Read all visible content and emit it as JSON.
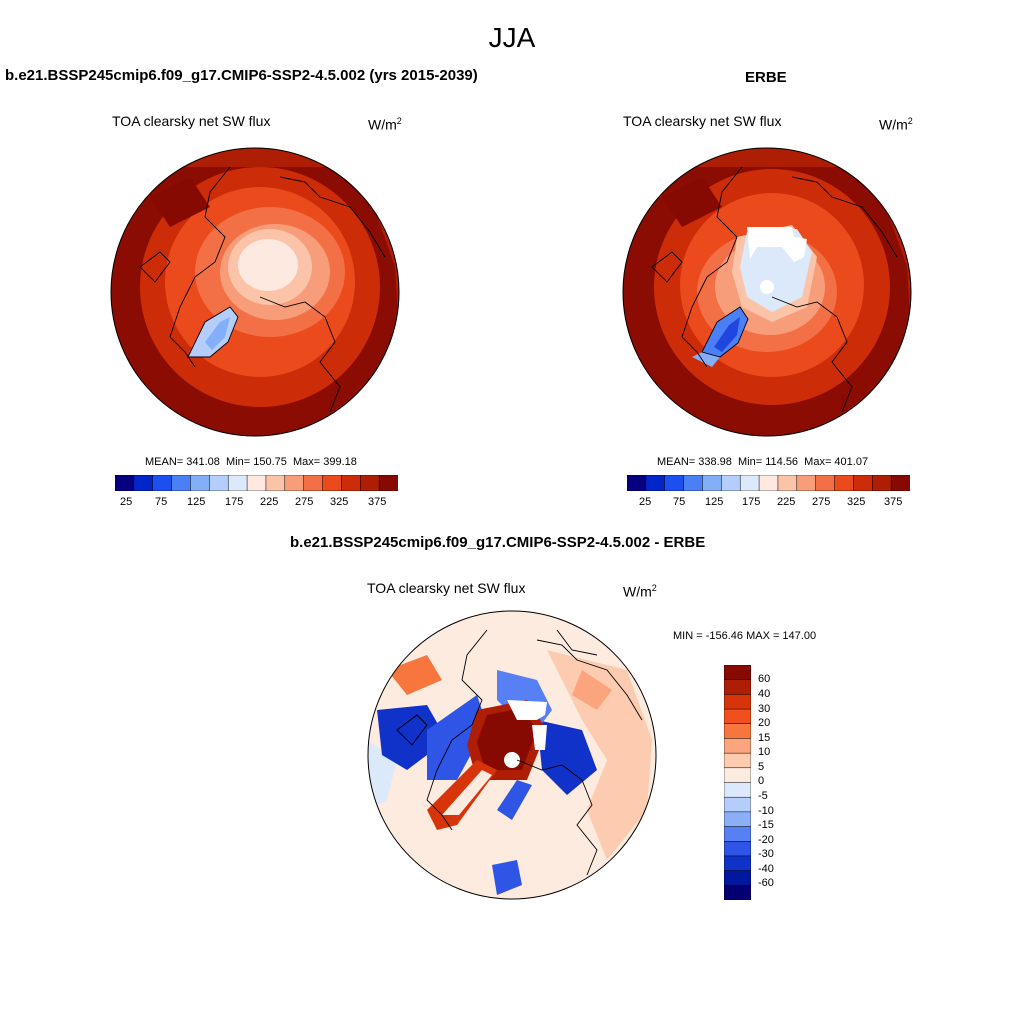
{
  "title": "JJA",
  "panels": [
    {
      "id": "model",
      "heading": "b.e21.BSSP245cmip6.f09_g17.CMIP6-SSP2-4.5.002 (yrs 2015-2039)",
      "variable": "TOA clearsky net SW flux",
      "units": "W/m",
      "units_sup": "2",
      "stats": "MEAN= 341.08  Min= 150.75  Max= 399.18",
      "colorbar_colors": [
        "#07007e",
        "#0025c8",
        "#1d4ff0",
        "#4a7ff6",
        "#83aef8",
        "#b5cdfa",
        "#dce9fb",
        "#fde9df",
        "#fbc4a8",
        "#f89d7a",
        "#f37046",
        "#ea4a1c",
        "#cc2c08",
        "#ae1e04",
        "#860a02"
      ],
      "colorbar_ticks": [
        "25",
        "75",
        "125",
        "175",
        "225",
        "275",
        "325",
        "375"
      ]
    },
    {
      "id": "obs",
      "heading": "ERBE",
      "variable": "TOA clearsky net SW flux",
      "units": "W/m",
      "units_sup": "2",
      "stats": "MEAN= 338.98  Min= 114.56  Max= 401.07",
      "colorbar_colors": [
        "#07007e",
        "#0025c8",
        "#1d4ff0",
        "#4a7ff6",
        "#83aef8",
        "#b5cdfa",
        "#dce9fb",
        "#fde9df",
        "#fbc4a8",
        "#f89d7a",
        "#f37046",
        "#ea4a1c",
        "#cc2c08",
        "#ae1e04",
        "#860a02"
      ],
      "colorbar_ticks": [
        "25",
        "75",
        "125",
        "175",
        "225",
        "275",
        "325",
        "375"
      ]
    },
    {
      "id": "diff",
      "heading": "b.e21.BSSP245cmip6.f09_g17.CMIP6-SSP2-4.5.002 - ERBE",
      "variable": "TOA clearsky net SW flux",
      "units": "W/m",
      "units_sup": "2",
      "stats": "MIN = -156.46 MAX = 147.00",
      "colorbar_colors": [
        "#860a02",
        "#ae1e04",
        "#d8340a",
        "#f0501e",
        "#f7763e",
        "#fba47e",
        "#fccbb0",
        "#fdebe0",
        "#dce9fb",
        "#b5cdfa",
        "#8aaff7",
        "#5680f3",
        "#2e55e6",
        "#1032c8",
        "#0018a0",
        "#050072"
      ],
      "colorbar_ticks": [
        "60",
        "40",
        "30",
        "20",
        "15",
        "10",
        "5",
        "0",
        "-5",
        "-10",
        "-15",
        "-20",
        "-30",
        "-40",
        "-60"
      ]
    }
  ]
}
